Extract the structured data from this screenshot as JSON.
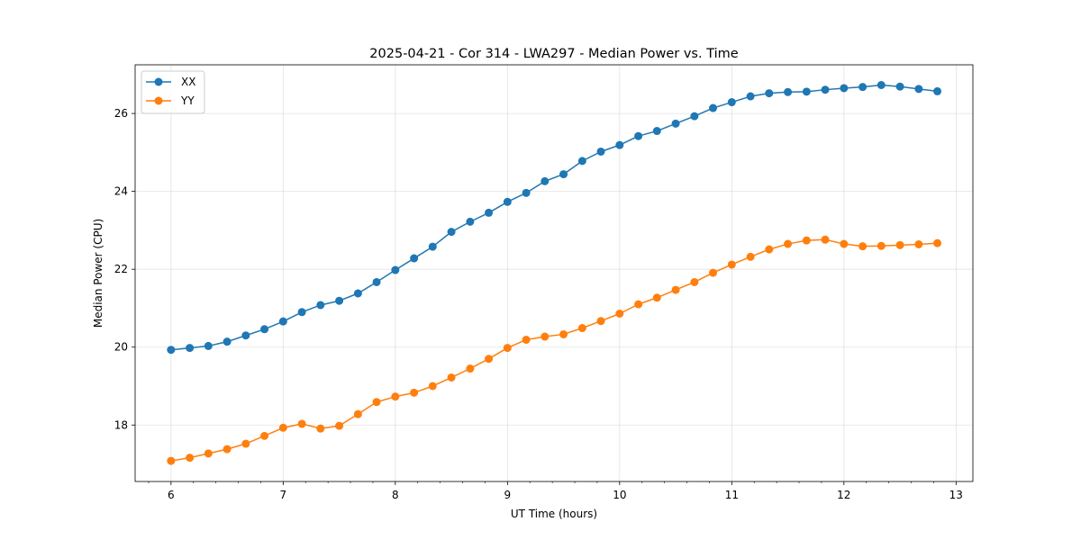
{
  "chart_data": {
    "type": "line",
    "title": "2025-04-21 - Cor 314 - LWA297 - Median Power vs. Time",
    "xlabel": "UT Time (hours)",
    "ylabel": "Median Power (CPU)",
    "xlim": [
      5.68,
      13.15
    ],
    "ylim": [
      16.55,
      27.25
    ],
    "xticks": [
      6,
      7,
      8,
      9,
      10,
      11,
      12,
      13
    ],
    "yticks": [
      18,
      20,
      22,
      24,
      26
    ],
    "grid": true,
    "legend_position": "upper-left",
    "x": [
      6.0,
      6.167,
      6.333,
      6.5,
      6.667,
      6.833,
      7.0,
      7.167,
      7.333,
      7.5,
      7.667,
      7.833,
      8.0,
      8.167,
      8.333,
      8.5,
      8.667,
      8.833,
      9.0,
      9.167,
      9.333,
      9.5,
      9.667,
      9.833,
      10.0,
      10.167,
      10.333,
      10.5,
      10.667,
      10.833,
      11.0,
      11.167,
      11.333,
      11.5,
      11.667,
      11.833,
      12.0,
      12.167,
      12.333,
      12.5,
      12.667,
      12.833
    ],
    "series": [
      {
        "name": "XX",
        "color": "#1f77b4",
        "values": [
          19.93,
          19.98,
          20.03,
          20.14,
          20.3,
          20.46,
          20.66,
          20.9,
          21.08,
          21.19,
          21.38,
          21.67,
          21.98,
          22.28,
          22.58,
          22.96,
          23.22,
          23.45,
          23.73,
          23.96,
          24.26,
          24.44,
          24.78,
          25.02,
          25.19,
          25.42,
          25.55,
          25.74,
          25.93,
          26.14,
          26.29,
          26.44,
          26.52,
          26.55,
          26.56,
          26.61,
          26.65,
          26.68,
          26.73,
          26.69,
          26.63,
          26.57
        ]
      },
      {
        "name": "YY",
        "color": "#ff7f0e",
        "values": [
          17.08,
          17.16,
          17.27,
          17.38,
          17.52,
          17.72,
          17.93,
          18.03,
          17.91,
          17.98,
          18.28,
          18.59,
          18.73,
          18.83,
          19.0,
          19.22,
          19.45,
          19.7,
          19.98,
          20.19,
          20.27,
          20.33,
          20.49,
          20.67,
          20.86,
          21.1,
          21.27,
          21.47,
          21.67,
          21.91,
          22.12,
          22.32,
          22.51,
          22.65,
          22.74,
          22.76,
          22.65,
          22.59,
          22.6,
          22.62,
          22.64,
          22.67
        ]
      }
    ]
  }
}
